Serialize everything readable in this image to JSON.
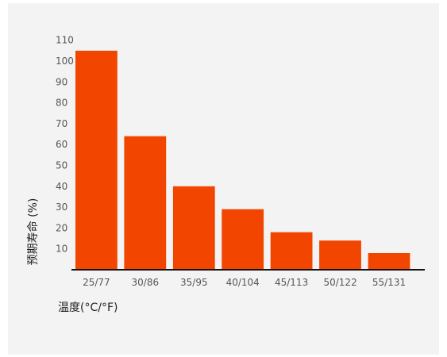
{
  "chart_data": {
    "type": "bar",
    "categories": [
      "25/77",
      "30/86",
      "35/95",
      "40/104",
      "45/113",
      "50/122",
      "55/131"
    ],
    "values": [
      105,
      64,
      40,
      29,
      18,
      14,
      8
    ],
    "xlabel": "温度(°C/°F)",
    "ylabel": "预期寿命 (%)",
    "ylim": [
      0,
      110
    ],
    "yticks": [
      10,
      20,
      30,
      40,
      50,
      60,
      70,
      80,
      90,
      100,
      110
    ],
    "grid": false,
    "bar_color": "#f24500",
    "axis_color": "#111111",
    "background": "#f3f3f3"
  }
}
